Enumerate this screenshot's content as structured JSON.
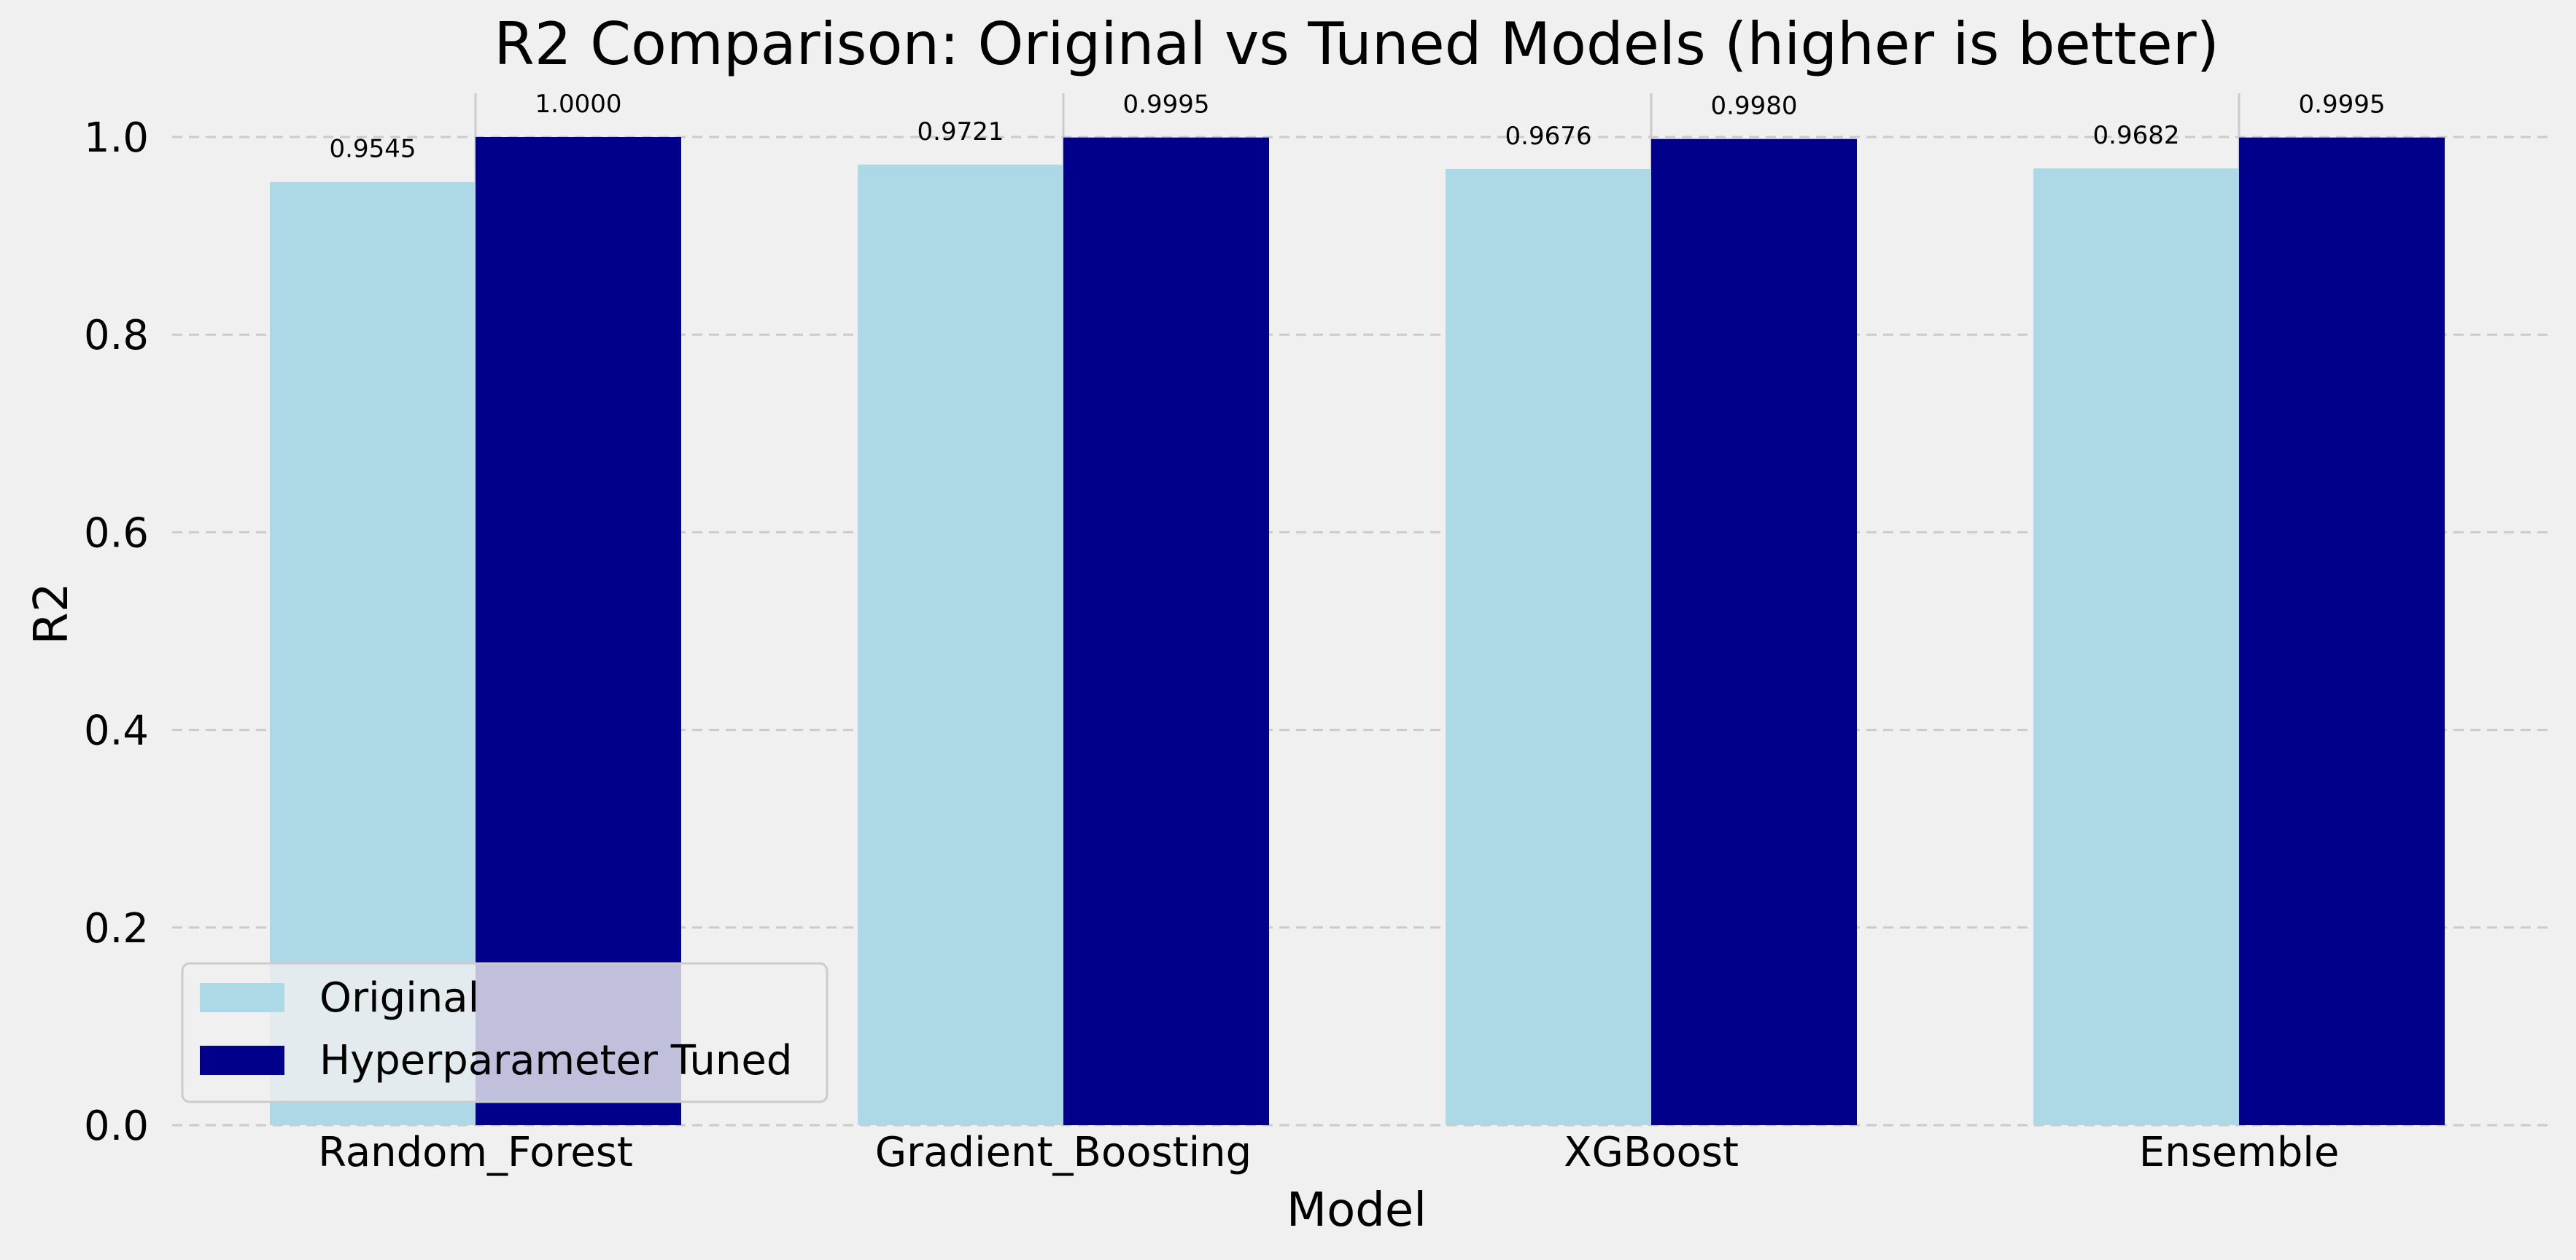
{
  "chart_data": {
    "type": "bar",
    "title": "R2 Comparison: Original vs Tuned Models (higher is better)",
    "xlabel": "Model",
    "ylabel": "R2",
    "ylim": [
      0,
      1.0
    ],
    "yticks": [
      "0.0",
      "0.2",
      "0.4",
      "0.6",
      "0.8",
      "1.0"
    ],
    "grid": "horizontal-dashed",
    "legend_position": "lower-left",
    "categories": [
      "Random_Forest",
      "Gradient_Boosting",
      "XGBoost",
      "Ensemble"
    ],
    "series": [
      {
        "name": "Original",
        "color": "#add8e6",
        "values": [
          0.9545,
          0.9721,
          0.9676,
          0.9682
        ],
        "labels": [
          "0.9545",
          "0.9721",
          "0.9676",
          "0.9682"
        ]
      },
      {
        "name": "Hyperparameter Tuned",
        "color": "#00008b",
        "values": [
          1.0,
          0.9995,
          0.998,
          0.9995
        ],
        "labels": [
          "1.0000",
          "0.9995",
          "0.9980",
          "0.9995"
        ]
      }
    ]
  }
}
